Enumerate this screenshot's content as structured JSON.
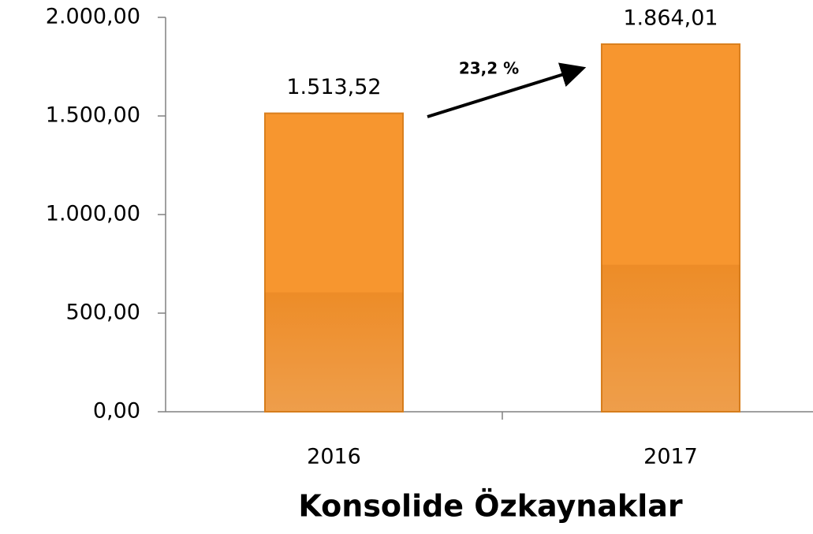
{
  "chart_data": {
    "type": "bar",
    "categories": [
      "2016",
      "2017"
    ],
    "values": [
      1513.52,
      1864.01
    ],
    "value_labels": [
      "1.513,52",
      "1.864,01"
    ],
    "color": "#f7962f",
    "ylim": [
      0,
      2000
    ],
    "yticks": [
      {
        "value": 0,
        "label": "0,00"
      },
      {
        "value": 500,
        "label": "500,00"
      },
      {
        "value": 1000,
        "label": "1.000,00"
      },
      {
        "value": 1500,
        "label": "1.500,00"
      },
      {
        "value": 2000,
        "label": "2.000,00"
      }
    ],
    "xlabel": "Konsolide Özkaynaklar",
    "annotation": "23,2 %"
  }
}
